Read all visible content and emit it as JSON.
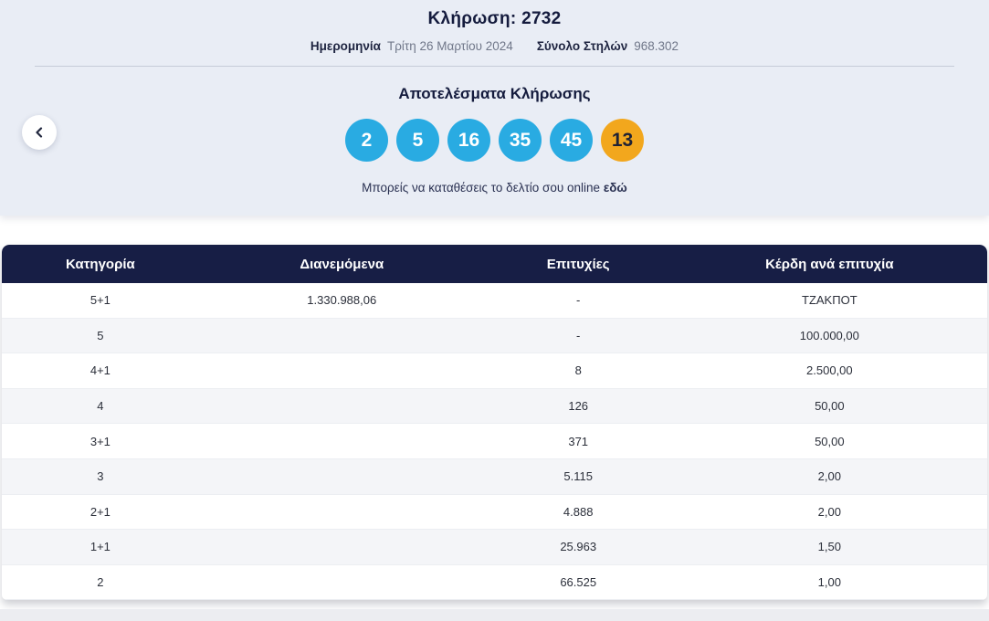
{
  "banner": {
    "draw_label": "Κλήρωση:",
    "draw_number": "2732",
    "date_label": "Ημερομηνία",
    "date_value": "Τρίτη 26 Μαρτίου 2024",
    "columns_label": "Σύνολο Στηλών",
    "columns_value": "968.302",
    "results_title": "Αποτελέσματα Κλήρωσης",
    "numbers": [
      2,
      5,
      16,
      35,
      45
    ],
    "bonus_number": 13,
    "online_text": "Μπορείς να καταθέσεις το δελτίο σου online",
    "online_link_label": "εδώ"
  },
  "table": {
    "headers": [
      "Κατηγορία",
      "Διανεμόμενα",
      "Επιτυχίες",
      "Κέρδη ανά επιτυχία"
    ],
    "rows": [
      {
        "category": "5+1",
        "distributed": "1.330.988,06",
        "winners": "-",
        "prize": "ΤΖΑΚΠΟΤ"
      },
      {
        "category": "5",
        "distributed": "",
        "winners": "-",
        "prize": "100.000,00"
      },
      {
        "category": "4+1",
        "distributed": "",
        "winners": "8",
        "prize": "2.500,00"
      },
      {
        "category": "4",
        "distributed": "",
        "winners": "126",
        "prize": "50,00"
      },
      {
        "category": "3+1",
        "distributed": "",
        "winners": "371",
        "prize": "50,00"
      },
      {
        "category": "3",
        "distributed": "",
        "winners": "5.115",
        "prize": "2,00"
      },
      {
        "category": "2+1",
        "distributed": "",
        "winners": "4.888",
        "prize": "2,00"
      },
      {
        "category": "1+1",
        "distributed": "",
        "winners": "25.963",
        "prize": "1,50"
      },
      {
        "category": "2",
        "distributed": "",
        "winners": "66.525",
        "prize": "1,00"
      }
    ]
  },
  "colors": {
    "banner_background": "#e9edf5",
    "ball_blue": "#29abe2",
    "ball_orange": "#f2a71d",
    "header_navy": "#171e45",
    "row_stripe": "#f4f5f8"
  }
}
